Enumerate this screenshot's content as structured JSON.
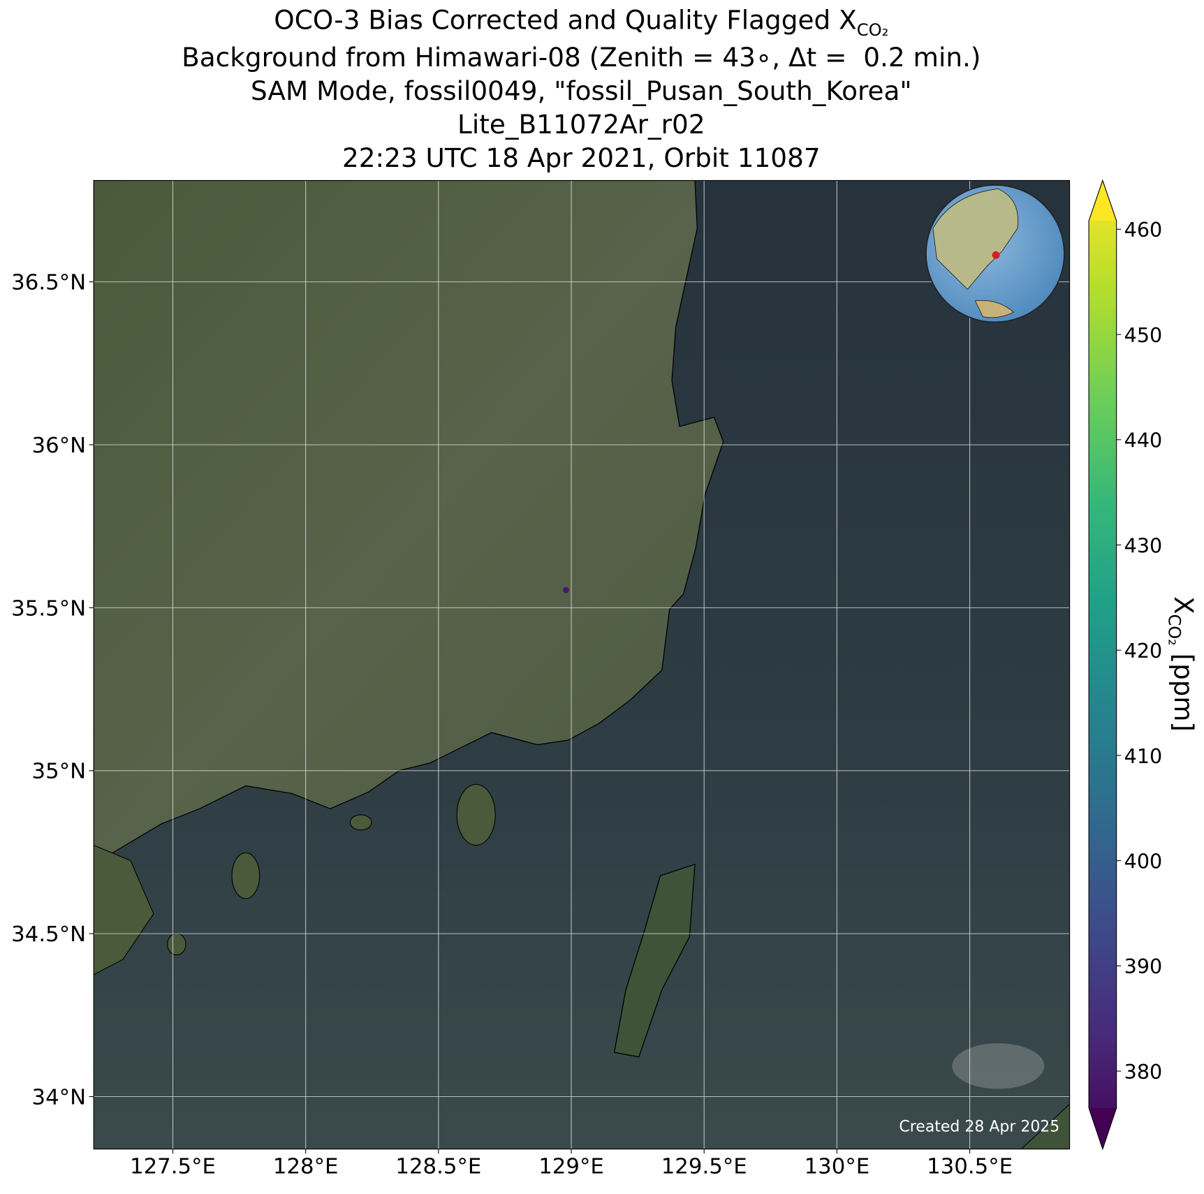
{
  "chart_data": {
    "type": "map",
    "title": "OCO-3 Bias Corrected and Quality Flagged X",
    "title_sub": "CO₂",
    "subtitle_lines": [
      "Background from Himawari-08 (Zenith = 43∘, Δt =  0.2 min.)",
      "SAM Mode, fossil0049, \"fossil_Pusan_South_Korea\"",
      "Lite_B11072Ar_r02",
      "22:23 UTC 18 Apr 2021, Orbit 11087"
    ],
    "xlim": [
      127.202,
      130.876
    ],
    "ylim": [
      33.839,
      36.811
    ],
    "xticks": [
      {
        "value": 127.5,
        "label": "127.5°E"
      },
      {
        "value": 128,
        "label": "128°E"
      },
      {
        "value": 128.5,
        "label": "128.5°E"
      },
      {
        "value": 129,
        "label": "129°E"
      },
      {
        "value": 129.5,
        "label": "129.5°E"
      },
      {
        "value": 130,
        "label": "130°E"
      },
      {
        "value": 130.5,
        "label": "130.5°E"
      }
    ],
    "yticks": [
      {
        "value": 34,
        "label": "34°N"
      },
      {
        "value": 34.5,
        "label": "34.5°N"
      },
      {
        "value": 35,
        "label": "35°N"
      },
      {
        "value": 35.5,
        "label": "35.5°N"
      },
      {
        "value": 36,
        "label": "36°N"
      },
      {
        "value": 36.5,
        "label": "36.5°N"
      }
    ],
    "grid": true,
    "x": [
      128.98
    ],
    "y": [
      35.554
    ],
    "values": [
      382
    ],
    "colorbar": {
      "label": "X",
      "label_sub": "CO₂",
      "label_unit": "[ppm]",
      "clim": [
        376.5,
        460.8
      ],
      "ticks": [
        380,
        390,
        400,
        410,
        420,
        430,
        440,
        450,
        460
      ],
      "colormap": "viridis"
    },
    "annotation": "Created 28 Apr 2025"
  }
}
